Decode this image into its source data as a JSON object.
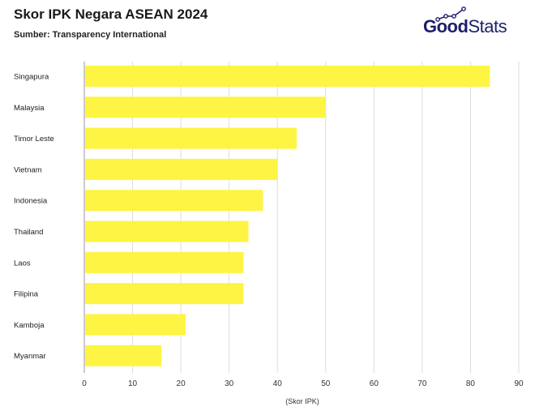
{
  "header": {
    "title": "Skor IPK Negara ASEAN 2024",
    "subtitle": "Sumber: Transparency International"
  },
  "logo": {
    "text_bold": "Good",
    "text_light": "Stats",
    "color": "#1d1f6b"
  },
  "chart_data": {
    "type": "bar",
    "orientation": "horizontal",
    "categories": [
      "Singapura",
      "Malaysia",
      "Timor Leste",
      "Vietnam",
      "Indonesia",
      "Thailand",
      "Laos",
      "Filipina",
      "Kamboja",
      "Myanmar"
    ],
    "values": [
      84,
      50,
      44,
      40,
      37,
      34,
      33,
      33,
      21,
      16
    ],
    "title": "Skor IPK Negara ASEAN 2024",
    "xlabel": "(Skor IPK)",
    "ylabel": "",
    "xlim": [
      0,
      90
    ],
    "xticks": [
      0,
      10,
      20,
      30,
      40,
      50,
      60,
      70,
      80,
      90
    ],
    "grid": true,
    "bar_color": "#fdf443"
  }
}
